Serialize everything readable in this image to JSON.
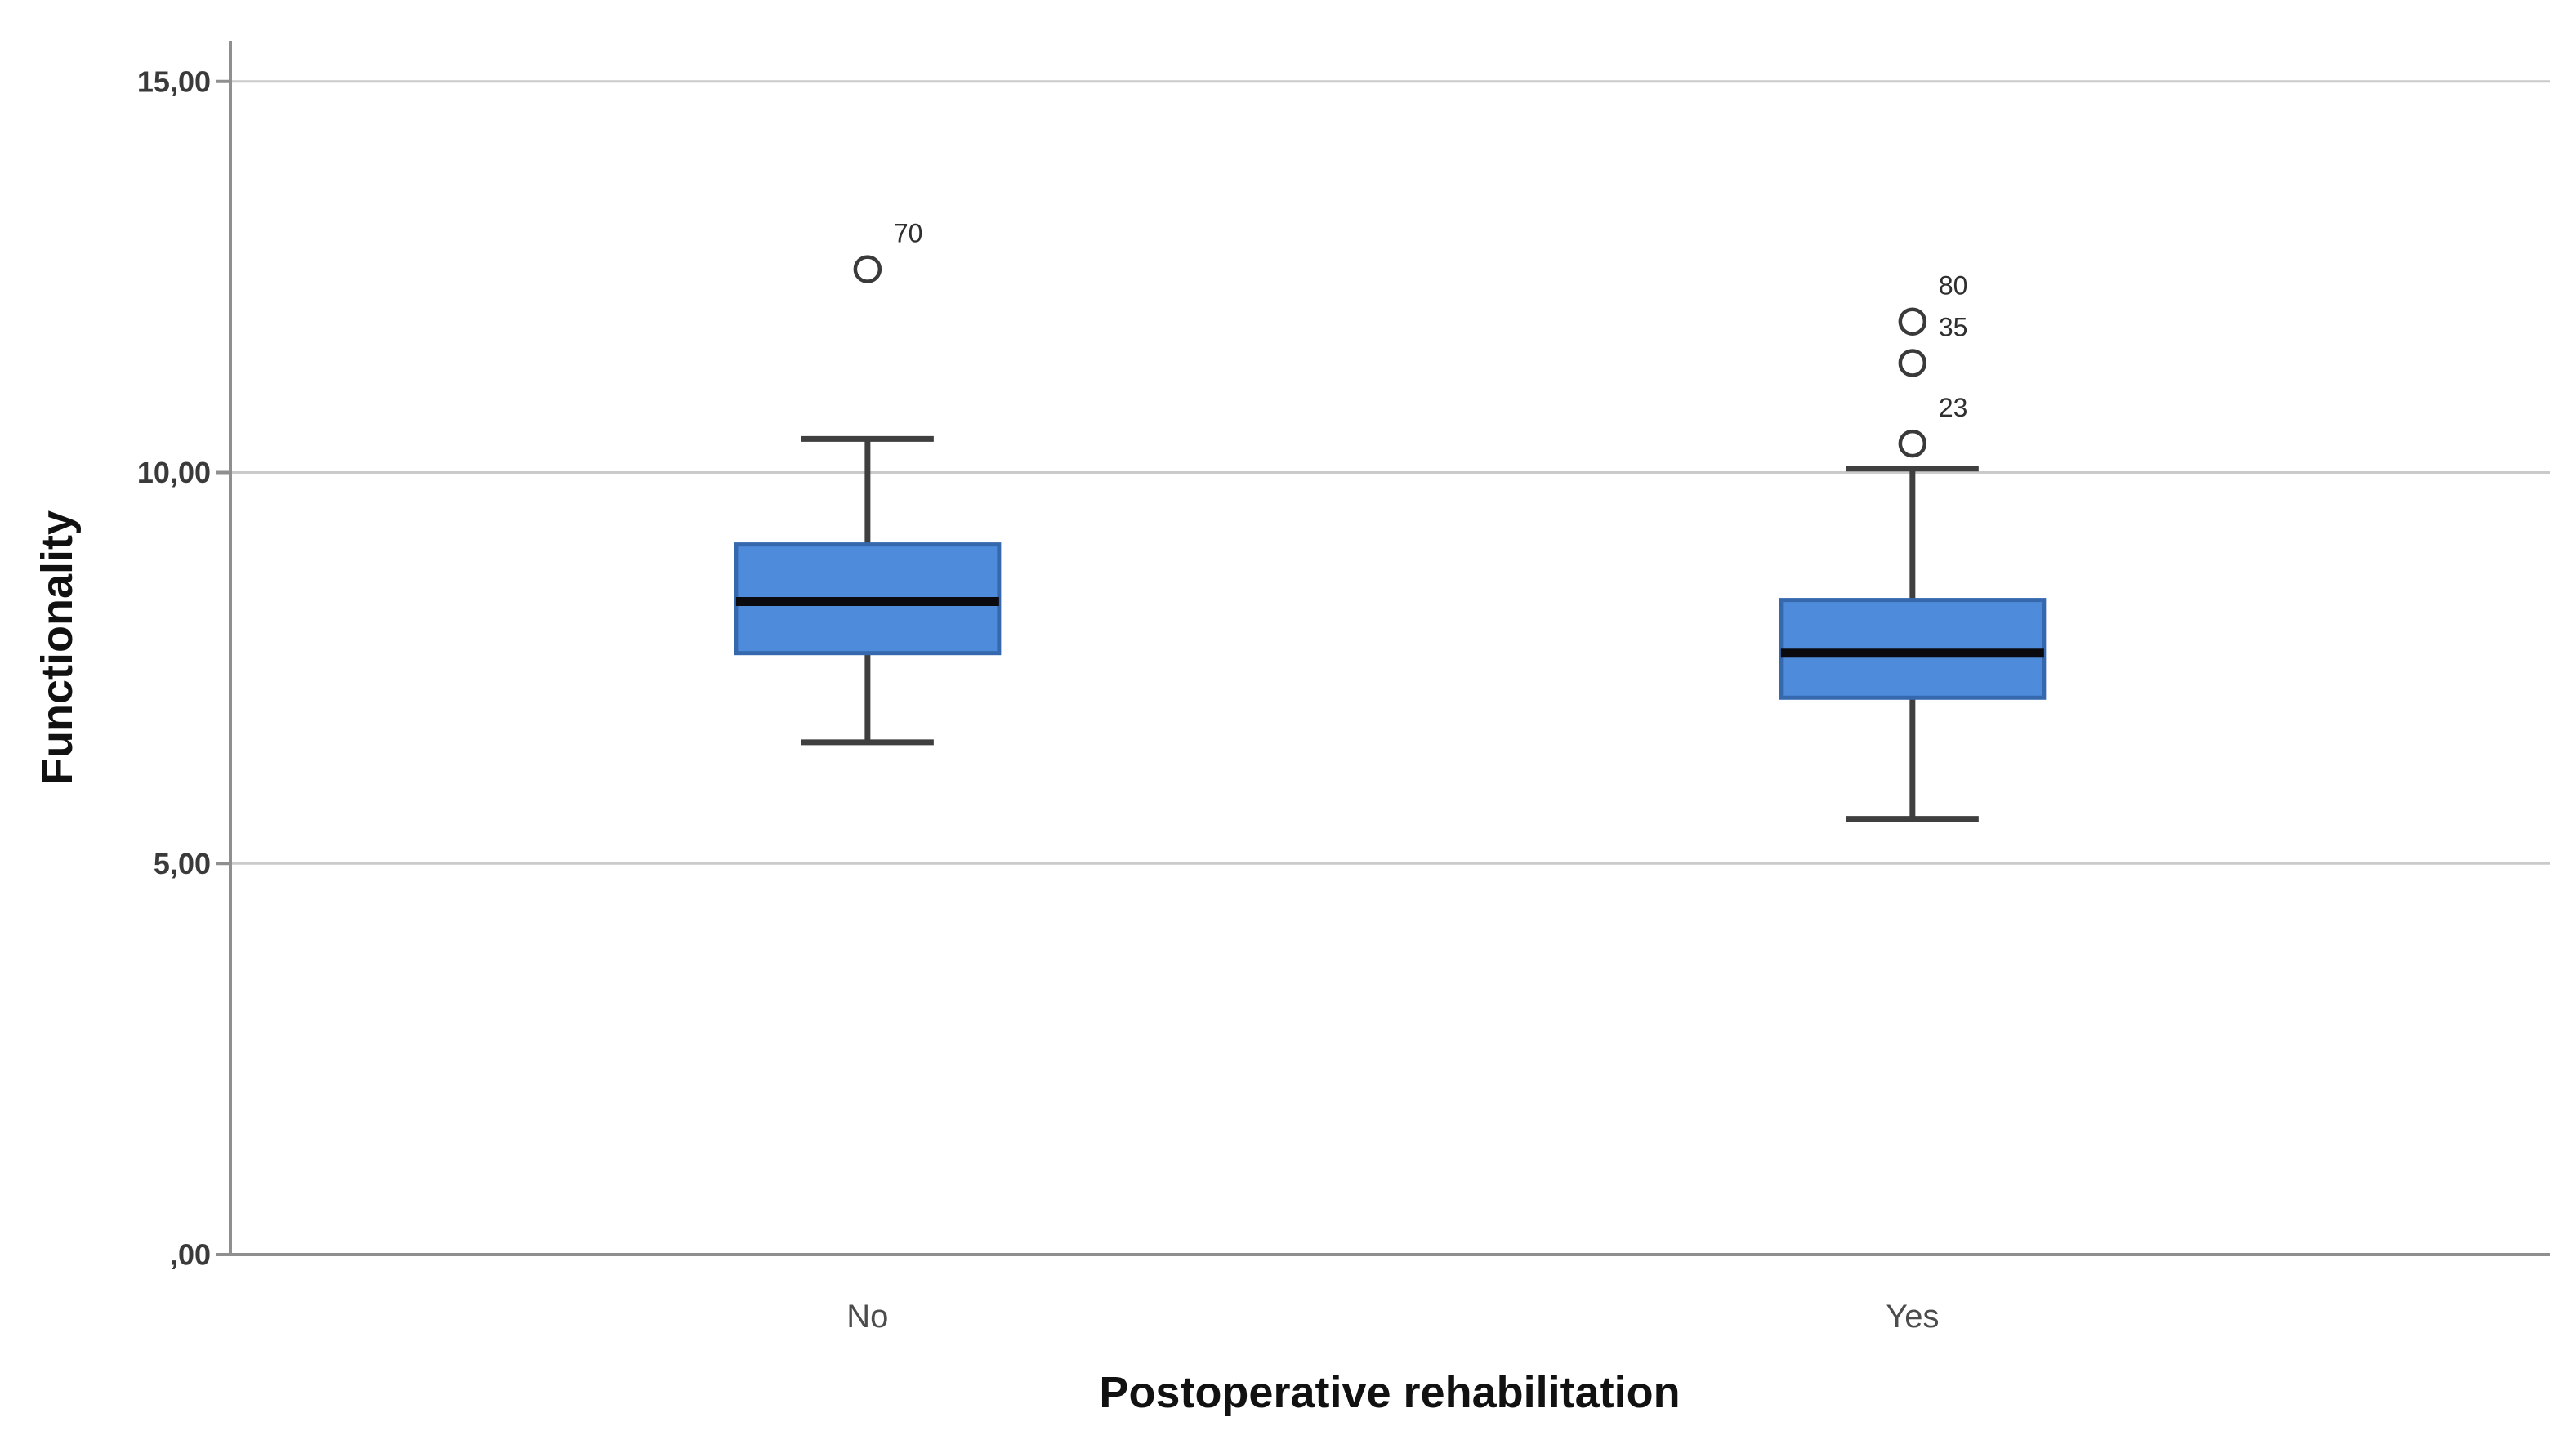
{
  "chart_data": {
    "type": "boxplot",
    "title": "",
    "xlabel": "Postoperative rehabilitation",
    "ylabel": "Functionality",
    "categories": [
      "No",
      "Yes"
    ],
    "ylim": [
      0,
      15.52
    ],
    "grid": true,
    "legend": "none",
    "y_ticks": [
      {
        "value": 0,
        "label": ",00"
      },
      {
        "value": 5,
        "label": "5,00"
      },
      {
        "value": 10,
        "label": "10,00"
      },
      {
        "value": 15,
        "label": "15,00"
      }
    ],
    "series": [
      {
        "category": "No",
        "whisker_low": 6.55,
        "q1": 7.69,
        "median": 8.35,
        "q3": 9.08,
        "whisker_high": 10.43,
        "outliers": [
          {
            "label": "70",
            "value": 12.6
          }
        ]
      },
      {
        "category": "Yes",
        "whisker_low": 5.57,
        "q1": 7.12,
        "median": 7.69,
        "q3": 8.37,
        "whisker_high": 10.05,
        "outliers": [
          {
            "label": "23",
            "value": 10.37
          },
          {
            "label": "35",
            "value": 11.4
          },
          {
            "label": "80",
            "value": 11.93
          }
        ]
      }
    ],
    "colors": {
      "box_fill": "#4E8BDB",
      "box_border": "#3668AE",
      "median": "#0B0B0F",
      "whisker": "#3F3F3F",
      "grid": "#CACACA",
      "axis": "#8F8F8F",
      "tick_text": "#3A3A3A",
      "category_text": "#4C4C4C",
      "outlier_ring": "#3A3A3A",
      "outlier_text": "#2F2F2F",
      "title_text": "#111111"
    }
  }
}
